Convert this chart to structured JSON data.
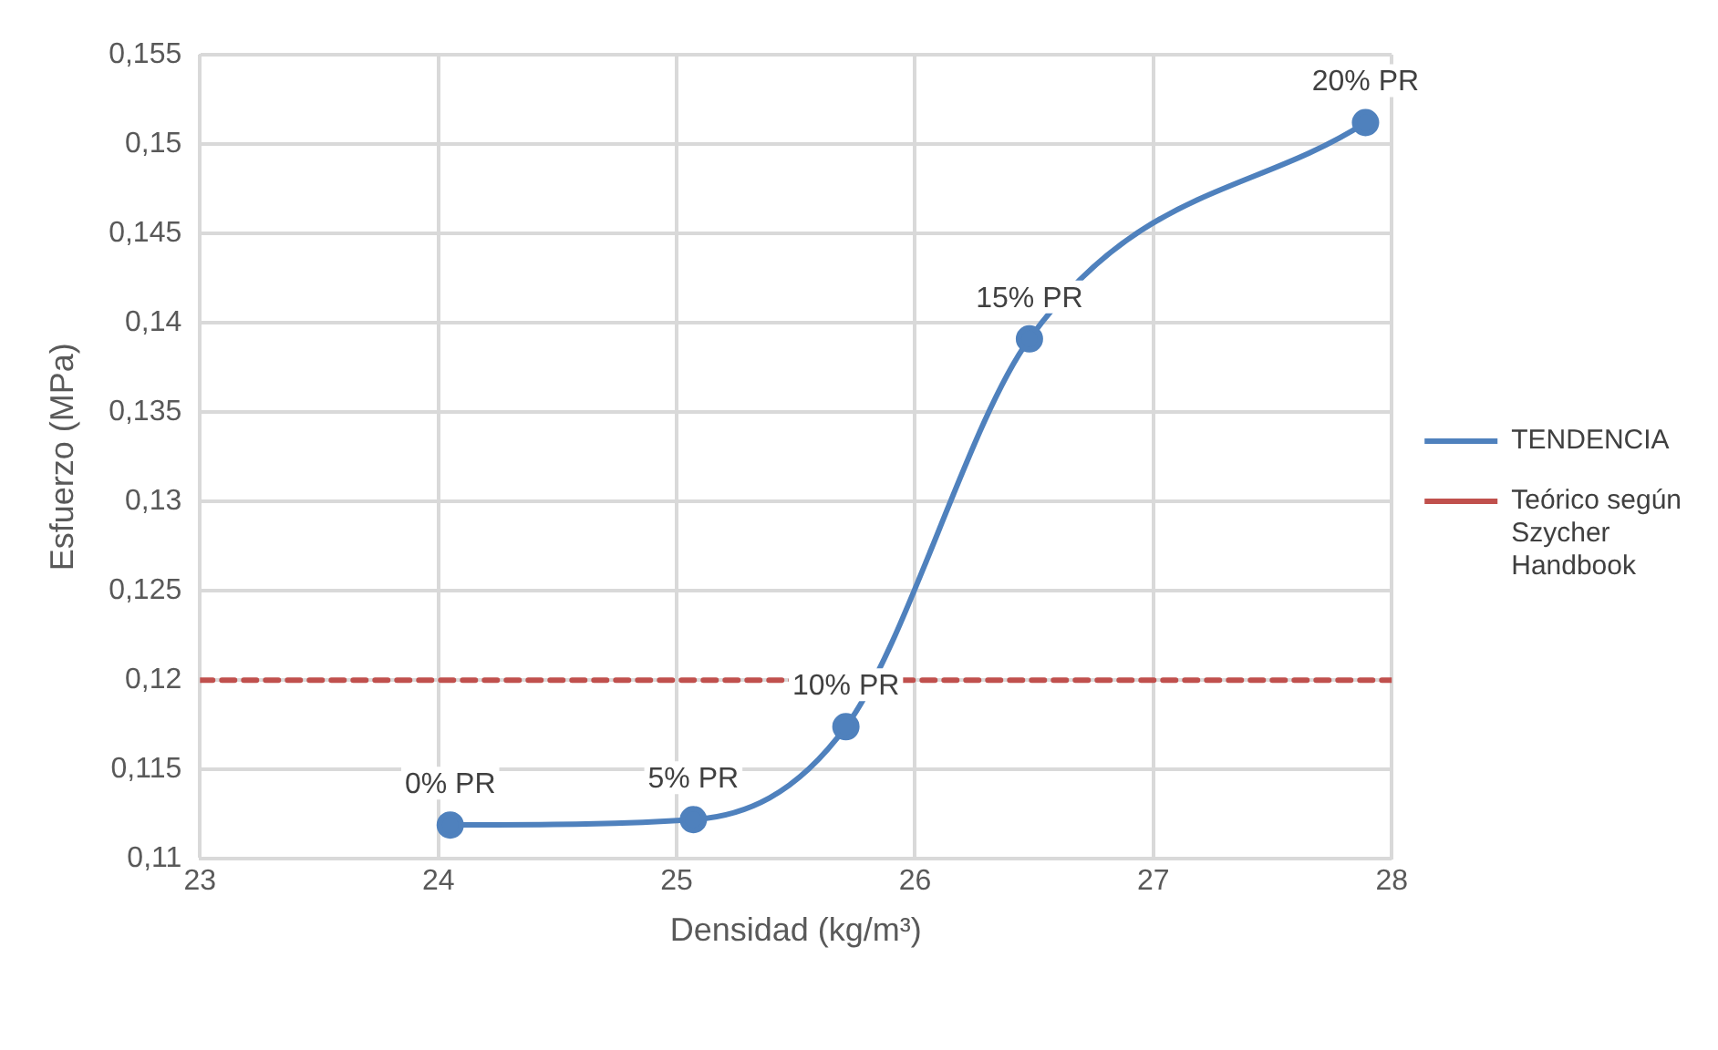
{
  "chart_data": {
    "type": "line",
    "xlabel": "Densidad (kg/m³)",
    "ylabel": "Esfuerzo (MPa)",
    "series": [
      {
        "name": "TENDENCIA",
        "color": "#4f81bd",
        "x": [
          24.05,
          25.07,
          25.71,
          26.48,
          27.89
        ],
        "values": [
          0.1119,
          0.1122,
          0.1174,
          0.1391,
          0.1512
        ],
        "marker": "circle",
        "line_style": "solid"
      },
      {
        "name": "Teórico según Szycher Handbook",
        "color": "#c0504d",
        "x": [
          23,
          28
        ],
        "values": [
          0.12,
          0.12
        ],
        "marker": "none",
        "line_style": "dashed"
      }
    ],
    "annotations": [
      {
        "text": "0% PR",
        "x": 24.05,
        "y": 0.1119
      },
      {
        "text": "5% PR",
        "x": 25.07,
        "y": 0.1122
      },
      {
        "text": "10% PR",
        "x": 25.71,
        "y": 0.1174
      },
      {
        "text": "15% PR",
        "x": 26.48,
        "y": 0.1391
      },
      {
        "text": "20% PR",
        "x": 27.89,
        "y": 0.1512
      }
    ],
    "xlim": [
      23,
      28
    ],
    "xticks": [
      23,
      24,
      25,
      26,
      27,
      28
    ],
    "ylim": [
      0.11,
      0.155
    ],
    "yticks": [
      {
        "value": 0.11,
        "label": "0,11"
      },
      {
        "value": 0.115,
        "label": "0,115"
      },
      {
        "value": 0.12,
        "label": "0,12"
      },
      {
        "value": 0.125,
        "label": "0,125"
      },
      {
        "value": 0.13,
        "label": "0,13"
      },
      {
        "value": 0.135,
        "label": "0,135"
      },
      {
        "value": 0.14,
        "label": "0,14"
      },
      {
        "value": 0.145,
        "label": "0,145"
      },
      {
        "value": 0.15,
        "label": "0,15"
      },
      {
        "value": 0.155,
        "label": "0,155"
      }
    ],
    "grid": true,
    "legend": "right"
  }
}
